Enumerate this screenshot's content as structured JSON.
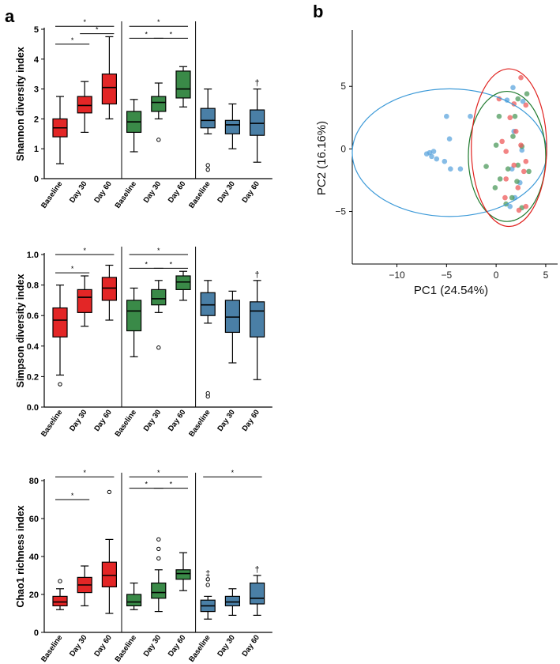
{
  "panels": {
    "a": "a",
    "b": "b"
  },
  "colors": {
    "red": "#e32626",
    "green": "#3a8a48",
    "blue": "#4a7fa6",
    "pca_red": "#ee5b5b",
    "pca_green": "#4d9a5c",
    "pca_blue": "#5ea6dd",
    "ell_red": "#e0221f",
    "ell_green": "#1f7a2e",
    "ell_blue": "#3d9ad8"
  },
  "chart_data": [
    {
      "type": "box",
      "id": "shannon",
      "ylabel": "Shannon diversity index",
      "ylim": [
        0,
        5
      ],
      "yticks": [
        "0",
        "1",
        "2",
        "3",
        "4",
        "5"
      ],
      "categories": [
        "Baseline",
        "Day 30",
        "Day 60",
        "Baseline",
        "Day 30",
        "Day 60",
        "Baseline",
        "Day 30",
        "Day 60"
      ],
      "groups": [
        "red",
        "red",
        "red",
        "green",
        "green",
        "green",
        "blue",
        "blue",
        "blue"
      ],
      "boxes": [
        {
          "min": 0.5,
          "q1": 1.4,
          "median": 1.7,
          "q3": 2.0,
          "max": 2.75,
          "outliers": []
        },
        {
          "min": 1.55,
          "q1": 2.2,
          "median": 2.45,
          "q3": 2.75,
          "max": 3.25,
          "outliers": []
        },
        {
          "min": 2.0,
          "q1": 2.5,
          "median": 3.05,
          "q3": 3.5,
          "max": 4.75,
          "outliers": []
        },
        {
          "min": 0.9,
          "q1": 1.55,
          "median": 1.9,
          "q3": 2.25,
          "max": 2.65,
          "outliers": []
        },
        {
          "min": 2.0,
          "q1": 2.25,
          "median": 2.55,
          "q3": 2.75,
          "max": 3.2,
          "outliers": [
            1.3
          ]
        },
        {
          "min": 2.4,
          "q1": 2.7,
          "median": 3.0,
          "q3": 3.6,
          "max": 3.75,
          "outliers": []
        },
        {
          "min": 1.5,
          "q1": 1.7,
          "median": 1.95,
          "q3": 2.35,
          "max": 3.0,
          "outliers": [
            0.3,
            0.45
          ]
        },
        {
          "min": 1.0,
          "q1": 1.5,
          "median": 1.8,
          "q3": 1.95,
          "max": 2.5,
          "outliers": []
        },
        {
          "min": 0.55,
          "q1": 1.45,
          "median": 1.85,
          "q3": 2.3,
          "max": 3.0,
          "outliers": []
        }
      ],
      "dagger_on": [
        8
      ],
      "dagger": "†",
      "sig_bars": [
        {
          "from": 0,
          "to": 2,
          "y": 5.1,
          "label": "*"
        },
        {
          "from": 0,
          "to": 1,
          "y": 4.5,
          "label": "*"
        },
        {
          "from": 1,
          "to": 2,
          "y": 4.85,
          "label": "*"
        },
        {
          "from": 3,
          "to": 5,
          "y": 5.1,
          "label": "*"
        },
        {
          "from": 3,
          "to": 4,
          "y": 4.7,
          "label": "*"
        },
        {
          "from": 4,
          "to": 5,
          "y": 4.7,
          "label": "*"
        }
      ]
    },
    {
      "type": "box",
      "id": "simpson",
      "ylabel": "Simpson diversity index",
      "ylim": [
        0,
        1.0
      ],
      "yticks": [
        "0.0",
        "0.2",
        "0.4",
        "0.6",
        "0.8",
        "1.0"
      ],
      "categories": [
        "Baseline",
        "Day 30",
        "Day 60",
        "Baseline",
        "Day 30",
        "Day 60",
        "Baseline",
        "Day 30",
        "Day 60"
      ],
      "groups": [
        "red",
        "red",
        "red",
        "green",
        "green",
        "green",
        "blue",
        "blue",
        "blue"
      ],
      "boxes": [
        {
          "min": 0.21,
          "q1": 0.46,
          "median": 0.57,
          "q3": 0.65,
          "max": 0.8,
          "outliers": [
            0.15
          ]
        },
        {
          "min": 0.53,
          "q1": 0.62,
          "median": 0.72,
          "q3": 0.77,
          "max": 0.86,
          "outliers": []
        },
        {
          "min": 0.57,
          "q1": 0.7,
          "median": 0.78,
          "q3": 0.85,
          "max": 0.93,
          "outliers": []
        },
        {
          "min": 0.33,
          "q1": 0.5,
          "median": 0.63,
          "q3": 0.7,
          "max": 0.78,
          "outliers": []
        },
        {
          "min": 0.62,
          "q1": 0.67,
          "median": 0.71,
          "q3": 0.77,
          "max": 0.83,
          "outliers": [
            0.39
          ]
        },
        {
          "min": 0.7,
          "q1": 0.77,
          "median": 0.82,
          "q3": 0.86,
          "max": 0.89,
          "outliers": []
        },
        {
          "min": 0.55,
          "q1": 0.6,
          "median": 0.67,
          "q3": 0.75,
          "max": 0.83,
          "outliers": [
            0.07,
            0.09
          ]
        },
        {
          "min": 0.29,
          "q1": 0.49,
          "median": 0.59,
          "q3": 0.7,
          "max": 0.76,
          "outliers": []
        },
        {
          "min": 0.18,
          "q1": 0.46,
          "median": 0.63,
          "q3": 0.69,
          "max": 0.83,
          "outliers": []
        }
      ],
      "dagger_on": [
        8
      ],
      "dagger": "†",
      "sig_bars": [
        {
          "from": 0,
          "to": 2,
          "y": 1.0,
          "label": "*"
        },
        {
          "from": 0,
          "to": 1,
          "y": 0.88,
          "label": "*"
        },
        {
          "from": 3,
          "to": 5,
          "y": 1.0,
          "label": "*"
        },
        {
          "from": 3,
          "to": 4,
          "y": 0.91,
          "label": "*"
        },
        {
          "from": 4,
          "to": 5,
          "y": 0.91,
          "label": "*"
        }
      ]
    },
    {
      "type": "box",
      "id": "chao1",
      "ylabel": "Chao1 richness index",
      "ylim": [
        0,
        80
      ],
      "yticks": [
        "0",
        "20",
        "40",
        "60",
        "80"
      ],
      "categories": [
        "Baseline",
        "Day 30",
        "Day 60",
        "Baseline",
        "Day 30",
        "Day 60",
        "Baseline",
        "Day 30",
        "Day 60"
      ],
      "groups": [
        "red",
        "red",
        "red",
        "green",
        "green",
        "green",
        "blue",
        "blue",
        "blue"
      ],
      "boxes": [
        {
          "min": 12,
          "q1": 14,
          "median": 16,
          "q3": 19,
          "max": 23,
          "outliers": [
            27
          ]
        },
        {
          "min": 14,
          "q1": 21,
          "median": 25,
          "q3": 29,
          "max": 35,
          "outliers": []
        },
        {
          "min": 10,
          "q1": 24,
          "median": 30,
          "q3": 37,
          "max": 49,
          "outliers": [
            74
          ]
        },
        {
          "min": 12,
          "q1": 14,
          "median": 16,
          "q3": 20,
          "max": 26,
          "outliers": []
        },
        {
          "min": 11,
          "q1": 18,
          "median": 21,
          "q3": 26,
          "max": 33,
          "outliers": [
            39,
            44,
            49
          ]
        },
        {
          "min": 22,
          "q1": 28,
          "median": 31,
          "q3": 33,
          "max": 42,
          "outliers": []
        },
        {
          "min": 7,
          "q1": 11,
          "median": 14,
          "q3": 17,
          "max": 19,
          "outliers": [
            25,
            28
          ]
        },
        {
          "min": 9,
          "q1": 14,
          "median": 16,
          "q3": 19,
          "max": 23,
          "outliers": []
        },
        {
          "min": 9,
          "q1": 15,
          "median": 18,
          "q3": 26,
          "max": 30,
          "outliers": []
        }
      ],
      "dagger_on": [
        8
      ],
      "dagger": "†",
      "double_dagger_on": [
        6
      ],
      "double_dagger": "‡",
      "sig_bars": [
        {
          "from": 0,
          "to": 2,
          "y": 82,
          "label": "*"
        },
        {
          "from": 0,
          "to": 1,
          "y": 70,
          "label": "*"
        },
        {
          "from": 3,
          "to": 5,
          "y": 82,
          "label": "*"
        },
        {
          "from": 3,
          "to": 4,
          "y": 76,
          "label": "*"
        },
        {
          "from": 4,
          "to": 5,
          "y": 76,
          "label": "*"
        },
        {
          "from": 6,
          "to": 8,
          "y": 82,
          "label": "*"
        }
      ]
    },
    {
      "type": "scatter",
      "id": "pca",
      "xlabel": "PC1 (24.54%)",
      "ylabel": "PC2 (16.16%)",
      "xlim": [
        -14.5,
        6.2
      ],
      "ylim": [
        -9.2,
        9.5
      ],
      "xticks": [
        "−10",
        "−5",
        "0",
        "5"
      ],
      "xtick_values": [
        -10,
        -5,
        0,
        5
      ],
      "yticks": [
        "5",
        "0",
        "−5"
      ],
      "ytick_values": [
        5,
        0,
        -5
      ],
      "series": [
        {
          "name": "red",
          "points": [
            [
              2.5,
              5.7
            ],
            [
              0.3,
              4.0
            ],
            [
              1.8,
              3.6
            ],
            [
              3.0,
              3.5
            ],
            [
              1.4,
              2.5
            ],
            [
              2.0,
              1.4
            ],
            [
              0.6,
              0.6
            ],
            [
              2.5,
              0.3
            ],
            [
              1.0,
              -0.2
            ],
            [
              3.0,
              -1.0
            ],
            [
              1.8,
              -1.3
            ],
            [
              2.8,
              -1.8
            ],
            [
              1.0,
              -2.4
            ],
            [
              2.2,
              -3.1
            ],
            [
              0.9,
              -3.9
            ],
            [
              2.3,
              -4.9
            ],
            [
              3.0,
              -4.6
            ]
          ]
        },
        {
          "name": "green",
          "points": [
            [
              2.2,
              4.0
            ],
            [
              3.1,
              4.4
            ],
            [
              1.9,
              2.6
            ],
            [
              0.3,
              2.6
            ],
            [
              1.7,
              1.0
            ],
            [
              0.0,
              0.3
            ],
            [
              2.6,
              0.2
            ],
            [
              -1.0,
              -1.4
            ],
            [
              2.2,
              -1.3
            ],
            [
              1.2,
              -1.6
            ],
            [
              3.3,
              -1.8
            ],
            [
              0.4,
              -2.4
            ],
            [
              2.1,
              -2.6
            ],
            [
              -0.1,
              -3.1
            ],
            [
              1.6,
              -3.9
            ],
            [
              1.0,
              -4.4
            ],
            [
              2.6,
              -4.7
            ]
          ]
        },
        {
          "name": "blue",
          "points": [
            [
              -7.0,
              -0.4
            ],
            [
              -6.7,
              -0.3
            ],
            [
              -6.5,
              -0.6
            ],
            [
              -6.3,
              -0.2
            ],
            [
              -6.0,
              -0.8
            ],
            [
              -5.2,
              -1.0
            ],
            [
              -4.6,
              -1.6
            ],
            [
              -3.6,
              -1.6
            ],
            [
              -5.0,
              2.6
            ],
            [
              -2.6,
              2.6
            ],
            [
              -4.7,
              0.8
            ],
            [
              1.7,
              4.9
            ],
            [
              1.1,
              3.9
            ],
            [
              2.7,
              3.8
            ],
            [
              1.8,
              1.4
            ],
            [
              2.6,
              -0.1
            ],
            [
              1.6,
              -1.6
            ],
            [
              2.4,
              -2.7
            ],
            [
              1.9,
              -3.9
            ],
            [
              1.4,
              -4.6
            ]
          ]
        }
      ],
      "ellipses": [
        {
          "name": "blue",
          "cx": -4.7,
          "cy": -0.3,
          "rx": 9.8,
          "ry": 5.1
        },
        {
          "name": "green",
          "cx": 1.1,
          "cy": -0.6,
          "rx": 3.9,
          "ry": 5.2
        },
        {
          "name": "red",
          "cx": 1.3,
          "cy": 0.1,
          "rx": 3.8,
          "ry": 6.3
        }
      ]
    }
  ]
}
